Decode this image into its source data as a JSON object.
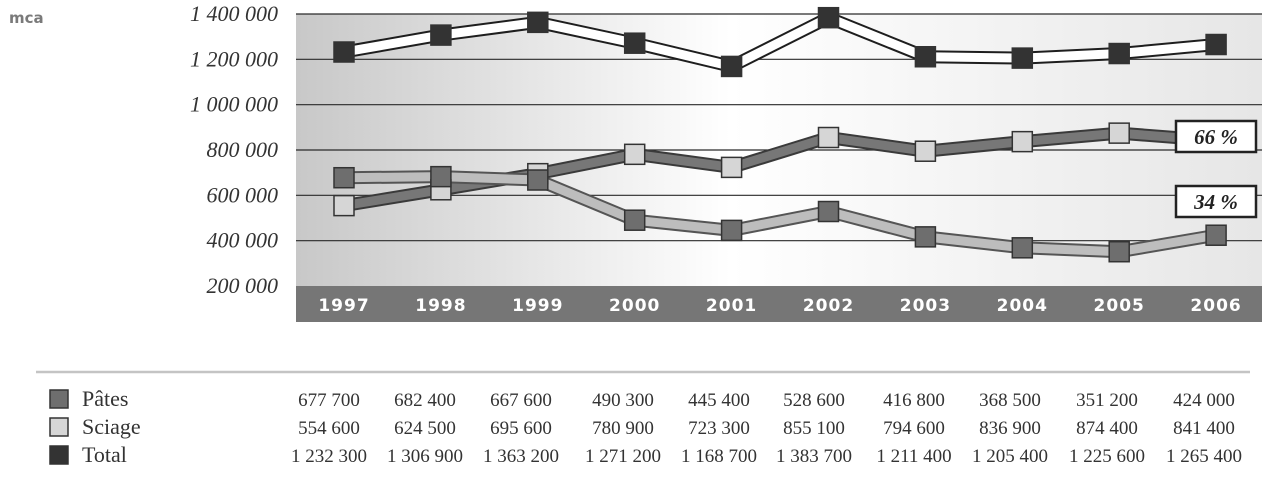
{
  "chart_data": {
    "type": "line",
    "unit_label": "mca",
    "categories": [
      "1997",
      "1998",
      "1999",
      "2000",
      "2001",
      "2002",
      "2003",
      "2004",
      "2005",
      "2006"
    ],
    "y_ticks": [
      "1 400 000",
      "1 200 000",
      "1 000 000",
      "800 000",
      "600 000",
      "400 000",
      "200 000"
    ],
    "ylim": [
      200000,
      1400000
    ],
    "grid": true,
    "series": [
      {
        "name": "Pâtes",
        "color": "#6e6e6e",
        "values": [
          677700,
          682400,
          667600,
          490300,
          445400,
          528600,
          416800,
          368500,
          351200,
          424000
        ],
        "labels": [
          "677 700",
          "682 400",
          "667 600",
          "490 300",
          "445 400",
          "528 600",
          "416 800",
          "368 500",
          "351 200",
          "424 000"
        ]
      },
      {
        "name": "Sciage",
        "color": "#d6d6d6",
        "values": [
          554600,
          624500,
          695600,
          780900,
          723300,
          855100,
          794600,
          836900,
          874400,
          841400
        ],
        "labels": [
          "554 600",
          "624 500",
          "695 600",
          "780 900",
          "723 300",
          "855 100",
          "794 600",
          "836 900",
          "874 400",
          "841 400"
        ]
      },
      {
        "name": "Total",
        "color": "#333333",
        "values": [
          1232300,
          1306900,
          1363200,
          1271200,
          1168700,
          1383700,
          1211400,
          1205400,
          1225600,
          1265400
        ],
        "labels": [
          "1 232 300",
          "1 306 900",
          "1 363 200",
          "1 271 200",
          "1 168 700",
          "1 383 700",
          "1 211 400",
          "1 205 400",
          "1 225 600",
          "1 265 400"
        ]
      }
    ],
    "annotations": [
      "66 %",
      "34 %"
    ]
  }
}
